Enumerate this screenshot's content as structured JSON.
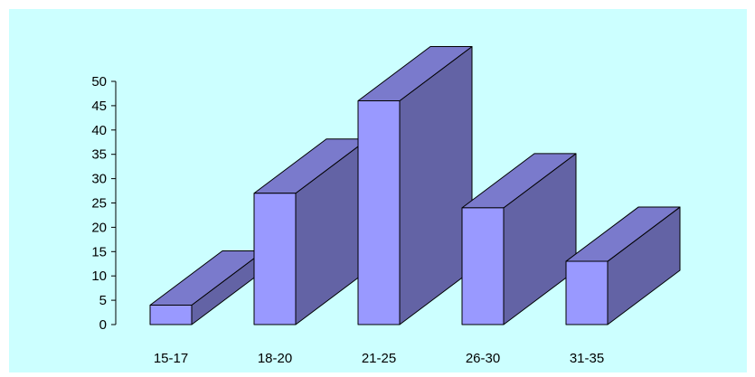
{
  "colors": {
    "background": "#CCFFFF",
    "bar_front": "#9999FF",
    "bar_top": "#7A7ACC",
    "bar_side": "#6363A5",
    "outline": "#000000",
    "axis": "#000000"
  },
  "chart_data": {
    "type": "bar",
    "style": "3d",
    "title": "",
    "xlabel": "",
    "ylabel": "",
    "categories": [
      "15-17",
      "18-20",
      "21-25",
      "26-30",
      "31-35"
    ],
    "values": [
      4,
      27,
      46,
      24,
      13
    ],
    "ylim": [
      0,
      50
    ],
    "yticks": [
      0,
      5,
      10,
      15,
      20,
      25,
      30,
      35,
      40,
      45,
      50
    ],
    "grid": false,
    "legend": "none"
  }
}
